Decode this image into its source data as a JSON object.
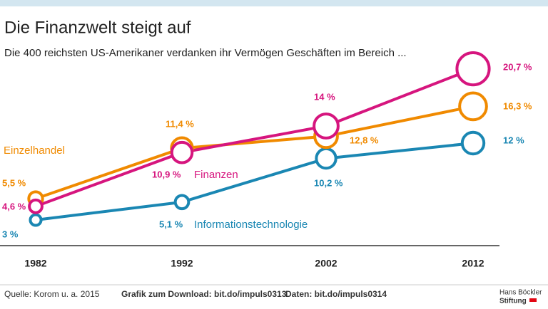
{
  "chart_data": {
    "type": "line",
    "title": "Die Finanzwelt steigt auf",
    "subtitle": "Die 400 reichsten US-Amerikaner verdanken ihr Vermögen Geschäften im Bereich ...",
    "categories": [
      "1982",
      "1992",
      "2002",
      "2012"
    ],
    "series": [
      {
        "name": "Einzelhandel",
        "color": "#f08a00",
        "values": [
          5.5,
          11.4,
          12.8,
          16.3
        ],
        "value_labels": [
          "5,5 %",
          "11,4 %",
          "12,8 %",
          "16,3 %"
        ]
      },
      {
        "name": "Finanzen",
        "color": "#d6157e",
        "values": [
          4.6,
          10.9,
          14,
          20.7
        ],
        "value_labels": [
          "4,6 %",
          "10,9 %",
          "14 %",
          "20,7 %"
        ]
      },
      {
        "name": "Informationstechnologie",
        "color": "#1a87b3",
        "values": [
          3,
          5.1,
          10.2,
          12
        ],
        "value_labels": [
          "3 %",
          "5,1 %",
          "10,2 %",
          "12 %"
        ]
      }
    ]
  },
  "footer": {
    "source": "Quelle: Korom u. a. 2015",
    "download": "Grafik zum Download: bit.do/impuls0313",
    "data": "Daten: bit.do/impuls0314",
    "logo": [
      "Hans Böckler",
      "Stiftung"
    ]
  }
}
